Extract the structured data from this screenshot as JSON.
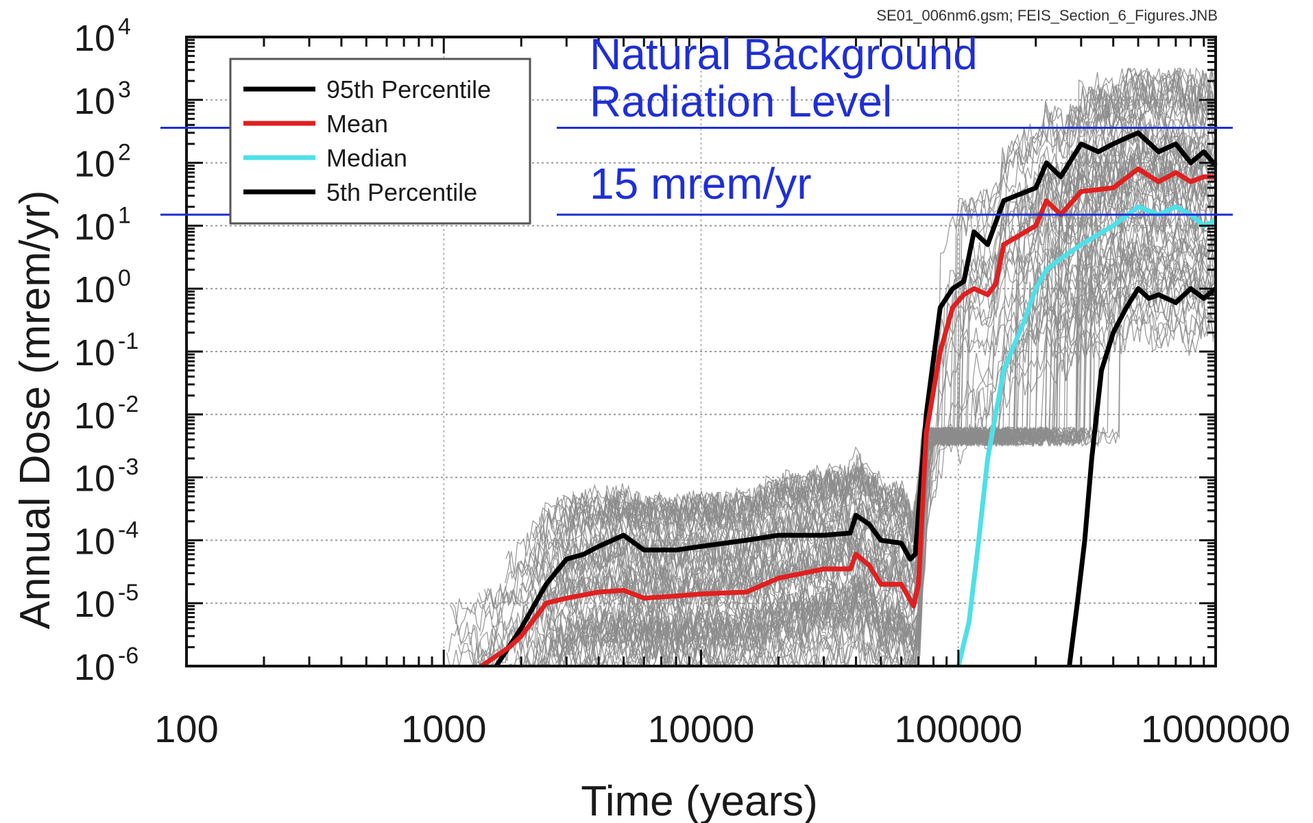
{
  "chart_data": {
    "type": "line",
    "source_note": "SE01_006nm6.gsm; FEIS_Section_6_Figures.JNB",
    "xlabel": "Time (years)",
    "ylabel": "Annual Dose (mrem/yr)",
    "xscale": "log",
    "yscale": "log",
    "xlim": [
      100,
      1000000
    ],
    "ylim": [
      1e-06,
      10000
    ],
    "grid": true,
    "legend_position": "top-left",
    "x_ticks": [
      "100",
      "1000",
      "10000",
      "100000",
      "1000000"
    ],
    "y_ticks": [
      {
        "base": "10",
        "exp": "-6",
        "value": 1e-06
      },
      {
        "base": "10",
        "exp": "-5",
        "value": 1e-05
      },
      {
        "base": "10",
        "exp": "-4",
        "value": 0.0001
      },
      {
        "base": "10",
        "exp": "-3",
        "value": 0.001
      },
      {
        "base": "10",
        "exp": "-2",
        "value": 0.01
      },
      {
        "base": "10",
        "exp": "-1",
        "value": 0.1
      },
      {
        "base": "10",
        "exp": "0",
        "value": 1
      },
      {
        "base": "10",
        "exp": "1",
        "value": 10
      },
      {
        "base": "10",
        "exp": "2",
        "value": 100
      },
      {
        "base": "10",
        "exp": "3",
        "value": 1000
      },
      {
        "base": "10",
        "exp": "4",
        "value": 10000
      }
    ],
    "series": [
      {
        "name": "95th Percentile",
        "color": "#000000",
        "points": [
          [
            1600,
            1e-06
          ],
          [
            2000,
            4e-06
          ],
          [
            2500,
            2e-05
          ],
          [
            3000,
            5e-05
          ],
          [
            3500,
            6e-05
          ],
          [
            4000,
            8e-05
          ],
          [
            5000,
            0.00012
          ],
          [
            6000,
            7e-05
          ],
          [
            8000,
            7e-05
          ],
          [
            10000,
            8e-05
          ],
          [
            15000,
            0.0001
          ],
          [
            20000,
            0.00012
          ],
          [
            30000,
            0.00012
          ],
          [
            38000,
            0.00013
          ],
          [
            40000,
            0.00025
          ],
          [
            45000,
            0.00018
          ],
          [
            50000,
            0.0001
          ],
          [
            60000,
            9e-05
          ],
          [
            65000,
            5e-05
          ],
          [
            68000,
            6e-05
          ],
          [
            75000,
            0.01
          ],
          [
            85000,
            0.5
          ],
          [
            95000,
            1
          ],
          [
            105000,
            1.3
          ],
          [
            115000,
            8
          ],
          [
            130000,
            5
          ],
          [
            150000,
            25
          ],
          [
            200000,
            40
          ],
          [
            220000,
            100
          ],
          [
            250000,
            60
          ],
          [
            300000,
            200
          ],
          [
            350000,
            150
          ],
          [
            400000,
            200
          ],
          [
            450000,
            250
          ],
          [
            500000,
            300
          ],
          [
            600000,
            150
          ],
          [
            700000,
            200
          ],
          [
            800000,
            100
          ],
          [
            900000,
            150
          ],
          [
            1000000,
            90
          ]
        ]
      },
      {
        "name": "Mean",
        "color": "#e02020",
        "points": [
          [
            1400,
            1e-06
          ],
          [
            1800,
            2e-06
          ],
          [
            2000,
            3e-06
          ],
          [
            2500,
            1e-05
          ],
          [
            3000,
            1.2e-05
          ],
          [
            4000,
            1.5e-05
          ],
          [
            5000,
            1.6e-05
          ],
          [
            6000,
            1.2e-05
          ],
          [
            8000,
            1.3e-05
          ],
          [
            10000,
            1.4e-05
          ],
          [
            15000,
            1.5e-05
          ],
          [
            20000,
            2.5e-05
          ],
          [
            30000,
            3.5e-05
          ],
          [
            38000,
            3.5e-05
          ],
          [
            40000,
            6e-05
          ],
          [
            45000,
            4e-05
          ],
          [
            50000,
            2e-05
          ],
          [
            60000,
            2e-05
          ],
          [
            67000,
            9e-06
          ],
          [
            70000,
            2e-05
          ],
          [
            75000,
            0.005
          ],
          [
            85000,
            0.1
          ],
          [
            95000,
            0.5
          ],
          [
            105000,
            0.8
          ],
          [
            115000,
            1
          ],
          [
            130000,
            0.8
          ],
          [
            140000,
            1.2
          ],
          [
            150000,
            5
          ],
          [
            200000,
            10
          ],
          [
            220000,
            25
          ],
          [
            250000,
            15
          ],
          [
            300000,
            35
          ],
          [
            400000,
            40
          ],
          [
            500000,
            80
          ],
          [
            600000,
            50
          ],
          [
            700000,
            70
          ],
          [
            800000,
            50
          ],
          [
            900000,
            60
          ],
          [
            1000000,
            60
          ]
        ]
      },
      {
        "name": "Median",
        "color": "#4fe0e8",
        "points": [
          [
            100000,
            1e-06
          ],
          [
            110000,
            5e-06
          ],
          [
            120000,
            0.0001
          ],
          [
            130000,
            0.002
          ],
          [
            150000,
            0.05
          ],
          [
            180000,
            0.3
          ],
          [
            200000,
            1
          ],
          [
            220000,
            2
          ],
          [
            250000,
            3
          ],
          [
            300000,
            5
          ],
          [
            400000,
            10
          ],
          [
            500000,
            20
          ],
          [
            600000,
            15
          ],
          [
            700000,
            20
          ],
          [
            800000,
            15
          ],
          [
            900000,
            10
          ],
          [
            1000000,
            12
          ]
        ]
      },
      {
        "name": "5th Percentile",
        "color": "#000000",
        "points": [
          [
            270000,
            1e-06
          ],
          [
            290000,
            1e-05
          ],
          [
            310000,
            0.0001
          ],
          [
            330000,
            0.002
          ],
          [
            360000,
            0.05
          ],
          [
            400000,
            0.2
          ],
          [
            450000,
            0.5
          ],
          [
            500000,
            1
          ],
          [
            550000,
            0.7
          ],
          [
            600000,
            0.8
          ],
          [
            700000,
            0.6
          ],
          [
            800000,
            1
          ],
          [
            900000,
            0.7
          ],
          [
            1000000,
            1
          ]
        ]
      }
    ],
    "annotations": [
      {
        "text_lines": [
          "Natural Background",
          "Radiation Level"
        ],
        "level_mrem_yr": 360
      },
      {
        "text_lines": [
          "15 mrem/yr"
        ],
        "level_mrem_yr": 15
      }
    ],
    "realization_count_note": "many gray individual realizations",
    "realization_color": "#8c8c8c"
  }
}
